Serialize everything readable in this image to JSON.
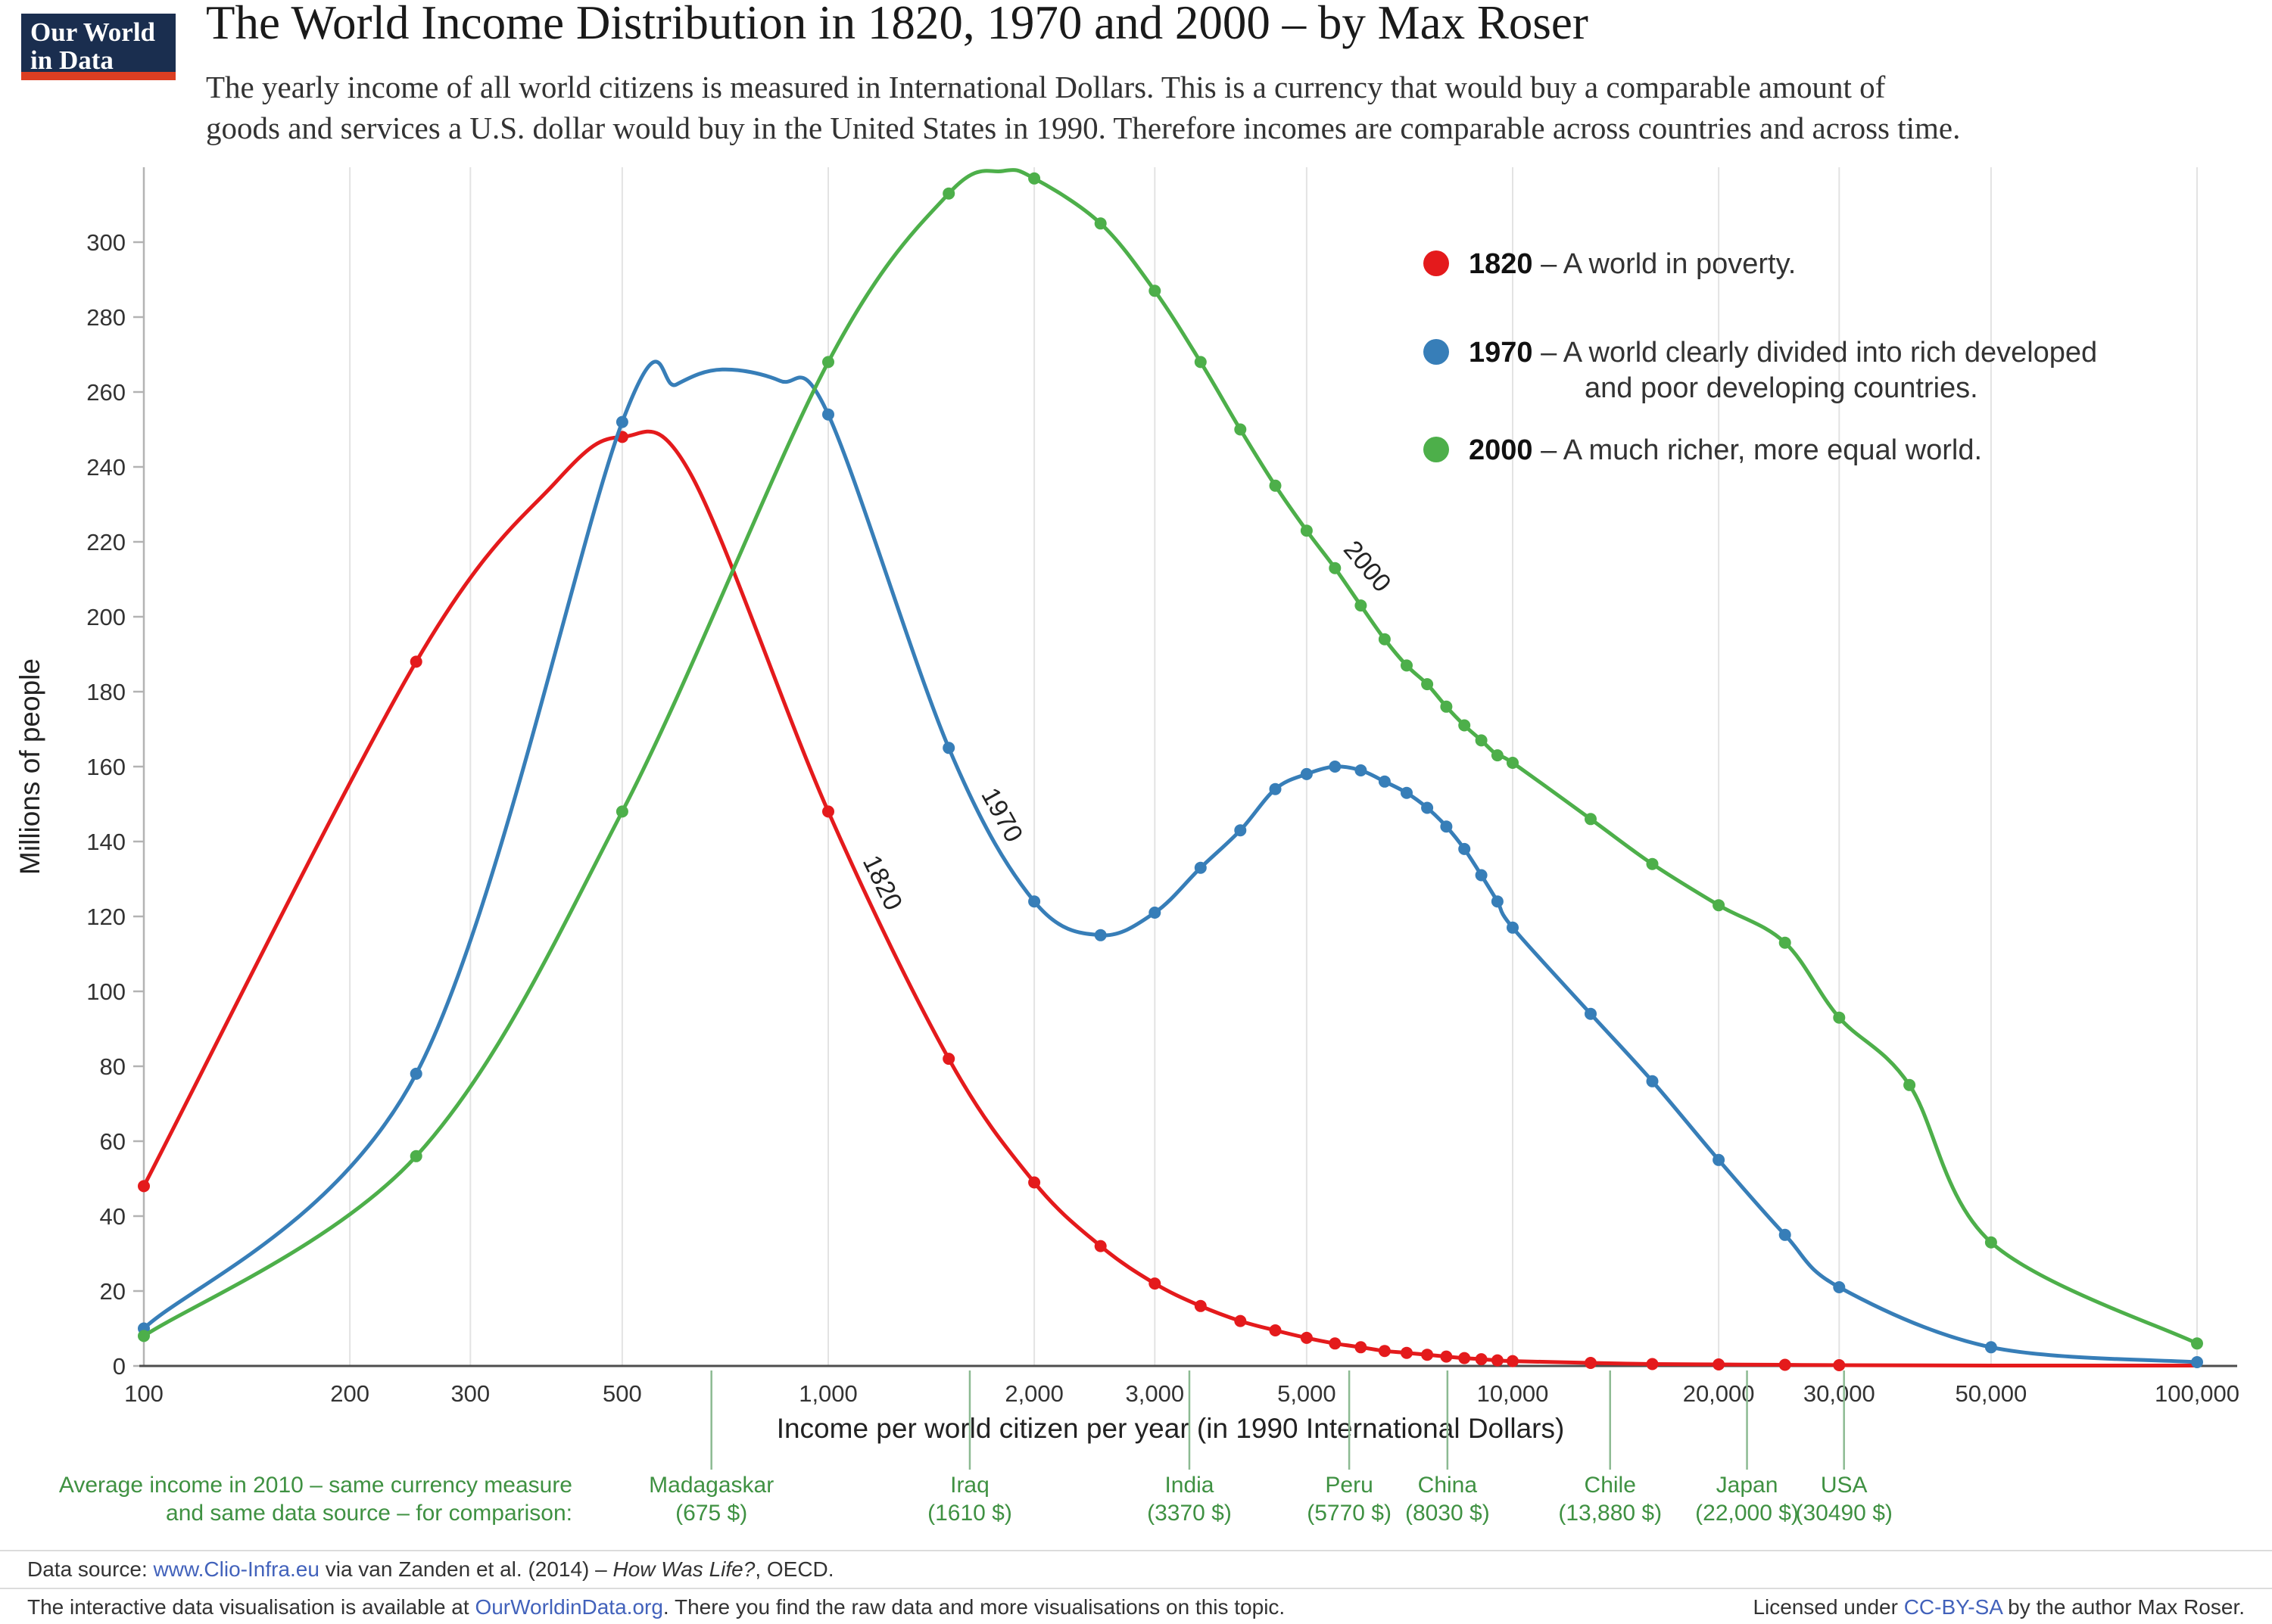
{
  "logo": {
    "line1": "Our World",
    "line2": "in Data"
  },
  "header": {
    "title": "The World Income Distribution in 1820, 1970 and 2000 – by Max Roser",
    "subtitle_line1": "The yearly income of all world citizens is measured in International Dollars. This is a currency that would buy a comparable amount of",
    "subtitle_line2": "goods and services a U.S. dollar would buy in the United States in 1990. Therefore incomes are comparable across countries and across time."
  },
  "chart_data": {
    "type": "line",
    "x_scale": "log",
    "title": "The World Income Distribution in 1820, 1970 and 2000",
    "xlabel": "Income per world citizen per year (in 1990 International Dollars)",
    "ylabel": "Millions of people",
    "xlim": [
      100,
      100000
    ],
    "ylim": [
      0,
      320
    ],
    "legend_position": "top-right",
    "grid": "vertical-only",
    "x_ticks": [
      {
        "v": 100,
        "label": "100"
      },
      {
        "v": 200,
        "label": "200"
      },
      {
        "v": 300,
        "label": "300"
      },
      {
        "v": 500,
        "label": "500"
      },
      {
        "v": 1000,
        "label": "1,000"
      },
      {
        "v": 2000,
        "label": "2,000"
      },
      {
        "v": 3000,
        "label": "3,000"
      },
      {
        "v": 5000,
        "label": "5,000"
      },
      {
        "v": 10000,
        "label": "10,000"
      },
      {
        "v": 20000,
        "label": "20,000"
      },
      {
        "v": 30000,
        "label": "30,000"
      },
      {
        "v": 50000,
        "label": "50,000"
      },
      {
        "v": 100000,
        "label": "100,000"
      }
    ],
    "y_ticks": [
      0,
      20,
      40,
      60,
      80,
      100,
      120,
      140,
      160,
      180,
      200,
      220,
      240,
      260,
      280,
      300
    ],
    "series": [
      {
        "name": "1820",
        "color": "#e41a1c",
        "legend_bold": "1820",
        "legend_lines": [
          "– A world in poverty."
        ],
        "curve_label": {
          "income": 1170,
          "value": 128,
          "angle": 64
        },
        "points": [
          [
            100,
            48
          ],
          [
            250,
            188
          ],
          [
            400,
            236,
            0
          ],
          [
            500,
            248
          ],
          [
            630,
            238,
            0
          ],
          [
            1000,
            148
          ],
          [
            1500,
            82
          ],
          [
            2000,
            49
          ],
          [
            2500,
            32
          ],
          [
            3000,
            22
          ],
          [
            3500,
            16
          ],
          [
            4000,
            12
          ],
          [
            4500,
            9.5
          ],
          [
            5000,
            7.5
          ],
          [
            5500,
            6
          ],
          [
            6000,
            5
          ],
          [
            6500,
            4
          ],
          [
            7000,
            3.5
          ],
          [
            7500,
            3
          ],
          [
            8000,
            2.5
          ],
          [
            8500,
            2.1
          ],
          [
            9000,
            1.8
          ],
          [
            9500,
            1.5
          ],
          [
            10000,
            1.3
          ],
          [
            13000,
            0.8
          ],
          [
            16000,
            0.5
          ],
          [
            20000,
            0.4
          ],
          [
            25000,
            0.3
          ],
          [
            30000,
            0.2
          ],
          [
            50000,
            0.1,
            0
          ],
          [
            100000,
            0.1,
            0
          ]
        ]
      },
      {
        "name": "1970",
        "color": "#377eb8",
        "legend_bold": "1970",
        "legend_lines": [
          "– A world clearly divided into rich developed",
          "and poor developing countries."
        ],
        "curve_label": {
          "income": 1750,
          "value": 146,
          "angle": 61
        },
        "points": [
          [
            100,
            10
          ],
          [
            250,
            78
          ],
          [
            500,
            252
          ],
          [
            600,
            262,
            0
          ],
          [
            700,
            266,
            0
          ],
          [
            850,
            263,
            0
          ],
          [
            1000,
            254
          ],
          [
            1500,
            165
          ],
          [
            2000,
            124
          ],
          [
            2500,
            115
          ],
          [
            3000,
            121
          ],
          [
            3500,
            133
          ],
          [
            4000,
            143
          ],
          [
            4500,
            154
          ],
          [
            5000,
            158
          ],
          [
            5500,
            160
          ],
          [
            6000,
            159
          ],
          [
            6500,
            156
          ],
          [
            7000,
            153
          ],
          [
            7500,
            149
          ],
          [
            8000,
            144
          ],
          [
            8500,
            138
          ],
          [
            9000,
            131
          ],
          [
            9500,
            124
          ],
          [
            10000,
            117
          ],
          [
            13000,
            94
          ],
          [
            16000,
            76
          ],
          [
            20000,
            55
          ],
          [
            25000,
            35
          ],
          [
            30000,
            21
          ],
          [
            50000,
            5
          ],
          [
            100000,
            1
          ]
        ]
      },
      {
        "name": "2000",
        "color": "#4daf4a",
        "legend_bold": "2000",
        "legend_lines": [
          "– A much richer, more equal world."
        ],
        "curve_label": {
          "income": 6000,
          "value": 212,
          "angle": 50
        },
        "points": [
          [
            100,
            8
          ],
          [
            250,
            56
          ],
          [
            500,
            148
          ],
          [
            1000,
            268
          ],
          [
            1500,
            313
          ],
          [
            1800,
            319,
            0
          ],
          [
            2000,
            317
          ],
          [
            2500,
            305
          ],
          [
            3000,
            287
          ],
          [
            3500,
            268
          ],
          [
            4000,
            250
          ],
          [
            4500,
            235
          ],
          [
            5000,
            223
          ],
          [
            5500,
            213
          ],
          [
            6000,
            203
          ],
          [
            6500,
            194
          ],
          [
            7000,
            187
          ],
          [
            7500,
            182
          ],
          [
            8000,
            176
          ],
          [
            8500,
            171
          ],
          [
            9000,
            167
          ],
          [
            9500,
            163
          ],
          [
            10000,
            161
          ],
          [
            13000,
            146
          ],
          [
            16000,
            134
          ],
          [
            20000,
            123
          ],
          [
            25000,
            113
          ],
          [
            30000,
            93
          ],
          [
            38000,
            75
          ],
          [
            50000,
            33
          ],
          [
            100000,
            6
          ]
        ]
      }
    ],
    "annotations": {
      "annotation_color": "#3f9142",
      "intro_lines": [
        "Average income in 2010 – same currency measure",
        "and same data source – for comparison:"
      ],
      "countries": [
        {
          "name": "Madagaskar",
          "value_label": "(675 $)",
          "income": 675
        },
        {
          "name": "Iraq",
          "value_label": "(1610 $)",
          "income": 1610
        },
        {
          "name": "India",
          "value_label": "(3370 $)",
          "income": 3370
        },
        {
          "name": "Peru",
          "value_label": "(5770 $)",
          "income": 5770
        },
        {
          "name": "China",
          "value_label": "(8030 $)",
          "income": 8030
        },
        {
          "name": "Chile",
          "value_label": "(13,880 $)",
          "income": 13880
        },
        {
          "name": "Japan",
          "value_label": "(22,000 $)",
          "income": 22000
        },
        {
          "name": "USA",
          "value_label": "(30490 $)",
          "income": 30490
        }
      ]
    }
  },
  "footer": {
    "source_label": "Data source: ",
    "source_link": "www.Clio-Infra.eu",
    "source_mid": " via van Zanden et al. (2014) – ",
    "source_italic": "How Was Life?",
    "source_end": ", OECD.",
    "info_pre": "The interactive data visualisation is available at ",
    "info_link": "OurWorldinData.org",
    "info_post": ". There you find the raw data and more visualisations on this topic.",
    "license_pre": "Licensed under ",
    "license_link": "CC-BY-SA",
    "license_post": " by the author Max Roser."
  },
  "colors": {
    "accent_red": "#e41a1c",
    "accent_blue": "#377eb8",
    "accent_green": "#4daf4a",
    "link_blue": "#4262bb",
    "logo_navy": "#1a2e4f",
    "logo_red": "#dc3e22"
  }
}
